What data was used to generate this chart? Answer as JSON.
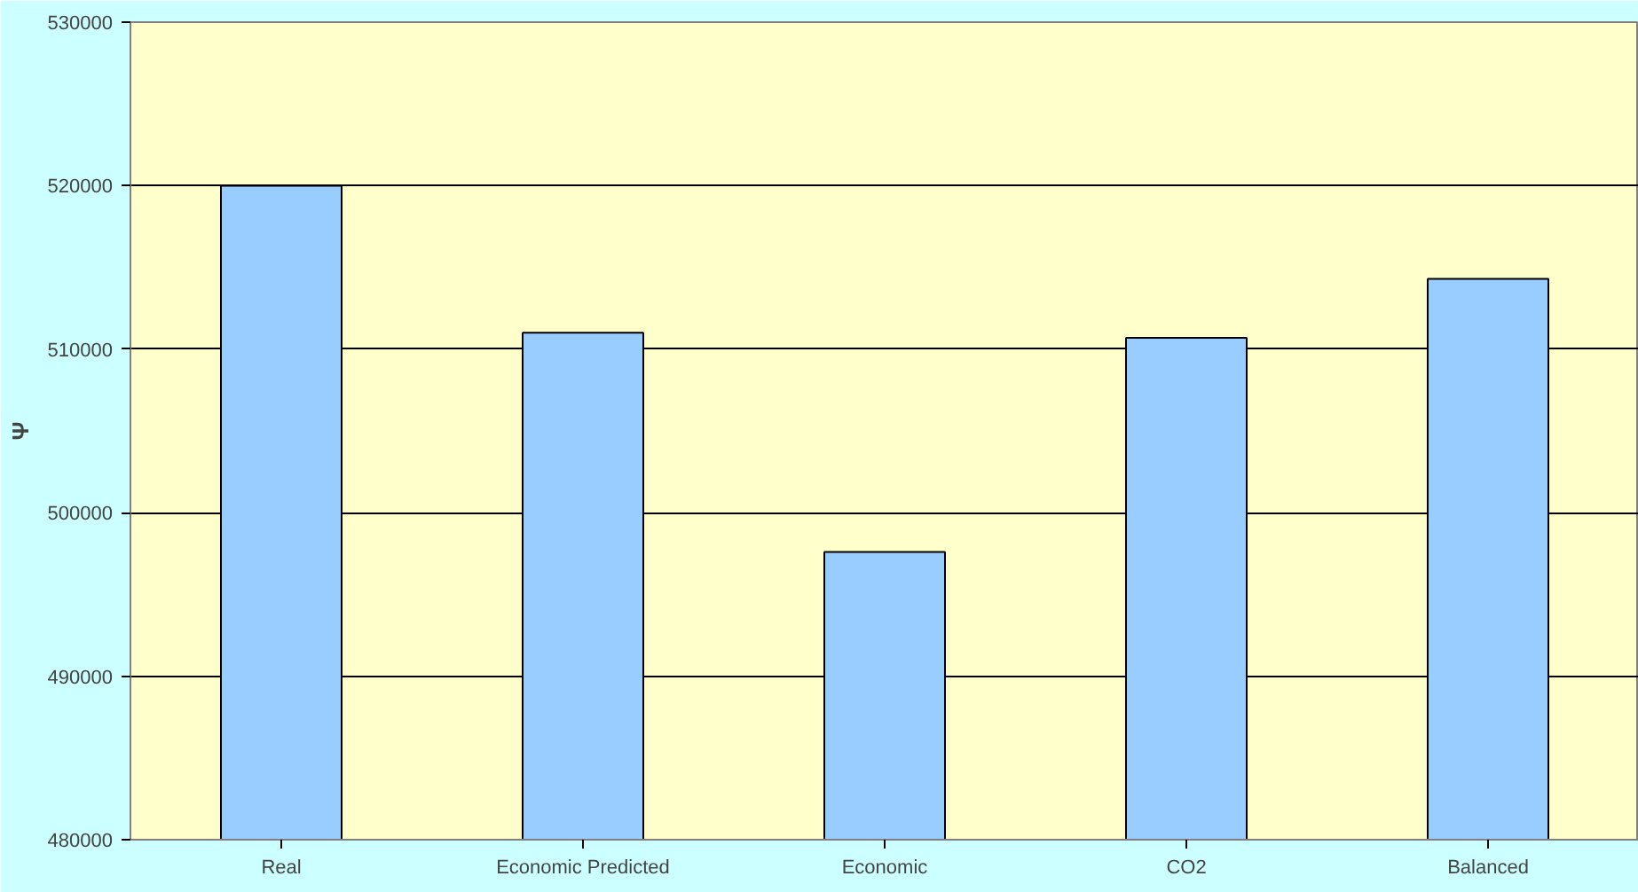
{
  "chart_data": {
    "type": "bar",
    "ylabel": "Ψ",
    "categories": [
      "Real",
      "Economic Predicted",
      "Economic",
      "CO2",
      "Balanced"
    ],
    "values": [
      520000,
      511000,
      497600,
      510700,
      514300
    ],
    "color": "#99ccff",
    "ylim": [
      480000,
      530000
    ],
    "yticks": [
      480000,
      490000,
      500000,
      510000,
      520000,
      530000
    ],
    "grid": "y"
  }
}
